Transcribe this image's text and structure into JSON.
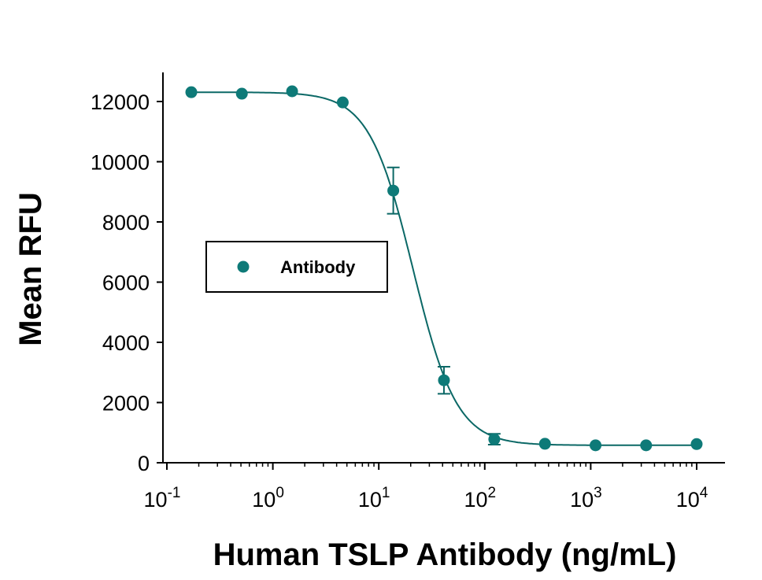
{
  "chart_data": {
    "type": "scatter",
    "xlabel": "Human TSLP Antibody (ng/mL)",
    "ylabel": "Mean RFU",
    "xscale": "log",
    "xlim": [
      0.1,
      10000
    ],
    "ylim": [
      0,
      12500
    ],
    "grid": false,
    "legend_placement": "center-left",
    "x_ticks": [
      {
        "base": "10",
        "exp": "-1",
        "value": 0.1
      },
      {
        "base": "10",
        "exp": "0",
        "value": 1
      },
      {
        "base": "10",
        "exp": "1",
        "value": 10
      },
      {
        "base": "10",
        "exp": "2",
        "value": 100
      },
      {
        "base": "10",
        "exp": "3",
        "value": 1000
      },
      {
        "base": "10",
        "exp": "4",
        "value": 10000
      }
    ],
    "y_ticks": [
      {
        "label": "0",
        "value": 0
      },
      {
        "label": "2000",
        "value": 2000
      },
      {
        "label": "4000",
        "value": 4000
      },
      {
        "label": "6000",
        "value": 6000
      },
      {
        "label": "8000",
        "value": 8000
      },
      {
        "label": "10000",
        "value": 10000
      },
      {
        "label": "12000",
        "value": 12000
      }
    ],
    "series": [
      {
        "name": "Antibody",
        "color": "#0e7a78",
        "x": [
          0.17,
          0.51,
          1.52,
          4.57,
          13.7,
          41.2,
          123,
          370,
          1111,
          3333,
          10000
        ],
        "y": [
          12310,
          12260,
          12340,
          11970,
          9040,
          2740,
          780,
          630,
          580,
          580,
          620
        ],
        "error": [
          0,
          0,
          0,
          0,
          770,
          450,
          180,
          0,
          0,
          0,
          0
        ],
        "fit": {
          "model": "4PL",
          "top": 12310,
          "bottom": 580,
          "ic50": 21,
          "hill": 2.1
        }
      }
    ]
  }
}
